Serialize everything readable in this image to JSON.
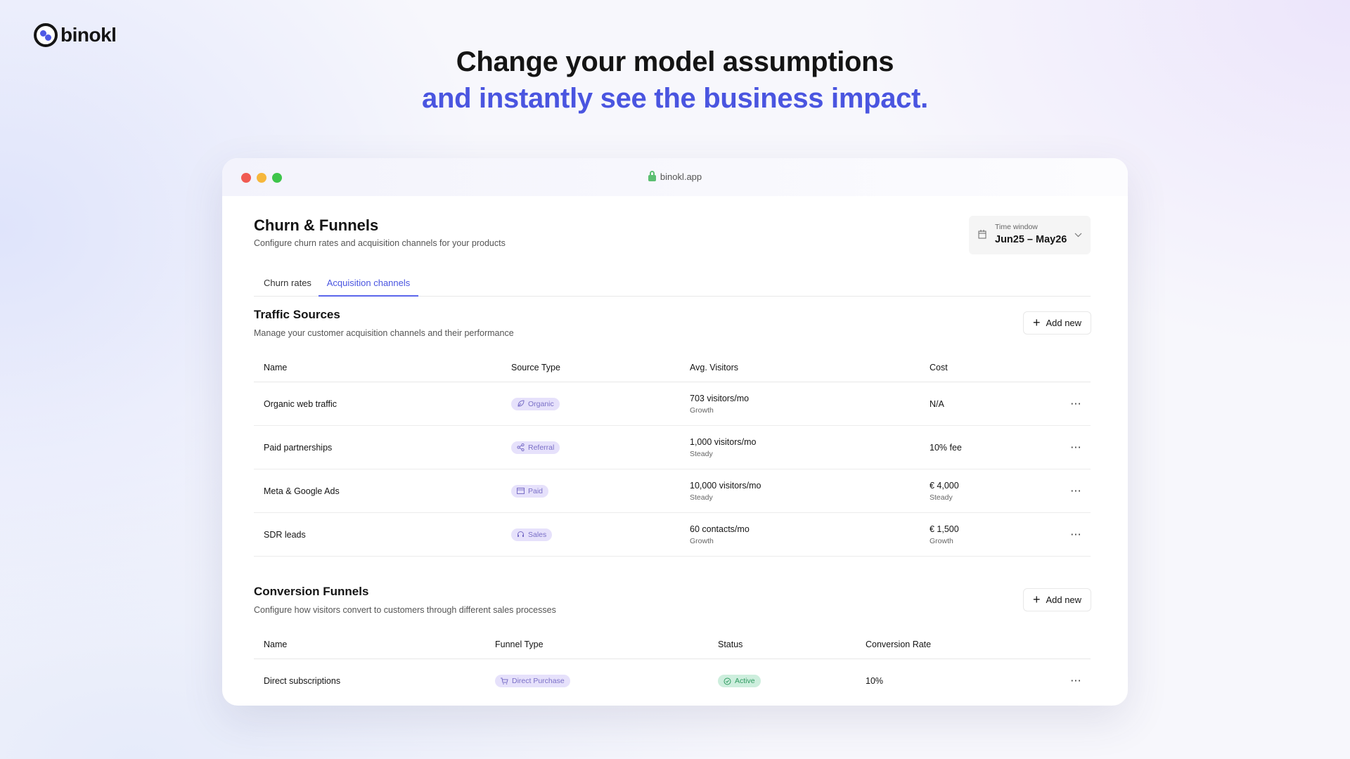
{
  "brand": {
    "name": "binokl",
    "accent": "#4a55e0"
  },
  "hero": {
    "line1": "Change your model assumptions",
    "line2": "and instantly see the business impact."
  },
  "browser": {
    "url": "binokl.app"
  },
  "page": {
    "title": "Churn & Funnels",
    "subtitle": "Configure churn rates and acquisition channels for your products",
    "time_window": {
      "label": "Time window",
      "value": "Jun25 – May26"
    },
    "tabs": [
      {
        "label": "Churn rates",
        "active": false
      },
      {
        "label": "Acquisition channels",
        "active": true
      }
    ]
  },
  "traffic": {
    "title": "Traffic Sources",
    "subtitle": "Manage your customer acquisition channels and their performance",
    "add_label": "Add new",
    "columns": [
      "Name",
      "Source Type",
      "Avg. Visitors",
      "Cost"
    ],
    "rows": [
      {
        "name": "Organic web traffic",
        "type": "Organic",
        "icon": "leaf-icon",
        "visitors": "703 visitors/mo",
        "visitors_trend": "Growth",
        "cost": "N/A",
        "cost_trend": ""
      },
      {
        "name": "Paid partnerships",
        "type": "Referral",
        "icon": "share-icon",
        "visitors": "1,000 visitors/mo",
        "visitors_trend": "Steady",
        "cost": "10% fee",
        "cost_trend": ""
      },
      {
        "name": "Meta & Google Ads",
        "type": "Paid",
        "icon": "credit-card-icon",
        "visitors": "10,000 visitors/mo",
        "visitors_trend": "Steady",
        "cost": "€ 4,000",
        "cost_trend": "Steady"
      },
      {
        "name": "SDR leads",
        "type": "Sales",
        "icon": "headset-icon",
        "visitors": "60 contacts/mo",
        "visitors_trend": "Growth",
        "cost": "€ 1,500",
        "cost_trend": "Growth"
      }
    ],
    "more_label": "···"
  },
  "funnels": {
    "title": "Conversion Funnels",
    "subtitle": "Configure how visitors convert to customers through different sales processes",
    "add_label": "Add new",
    "columns": [
      "Name",
      "Funnel Type",
      "Status",
      "Conversion Rate"
    ],
    "rows": [
      {
        "name": "Direct subscriptions",
        "type": "Direct Purchase",
        "status": "Active",
        "rate": "10%"
      }
    ],
    "more_label": "···"
  }
}
